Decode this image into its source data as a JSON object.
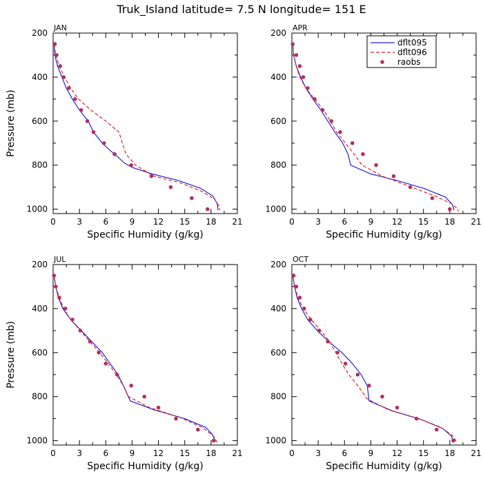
{
  "title": "Truk_Island  latitude= 7.5 N longitude= 151 E",
  "legend": {
    "entries": [
      "dflt095",
      "dflt096",
      "raobs"
    ]
  },
  "colors": {
    "dflt095": "#1f1fdd",
    "dflt096": "#dd2222",
    "raobs": "#b03060"
  },
  "chart_data": [
    {
      "type": "line",
      "panel_label": "JAN",
      "xlabel": "Specific Humidity (g/kg)",
      "ylabel": "Pressure (mb)",
      "xlim": [
        0,
        21
      ],
      "ylim": [
        200,
        1020
      ],
      "y_inverted": true,
      "xticks": [
        "0",
        "3",
        "6",
        "9",
        "12",
        "15",
        "18",
        "21"
      ],
      "yticks": [
        "200",
        "400",
        "600",
        "800",
        "1000"
      ],
      "series": [
        {
          "name": "dflt095",
          "style": "solid",
          "x": [
            0.1,
            0.2,
            0.5,
            1.0,
            1.5,
            2.2,
            3.0,
            4.0,
            4.6,
            5.6,
            6.4,
            7.3,
            8.1,
            9.0,
            11.3,
            14.3,
            16.8,
            18.2,
            18.7,
            18.8
          ],
          "y": [
            250,
            300,
            350,
            400,
            450,
            500,
            550,
            600,
            650,
            700,
            730,
            760,
            790,
            810,
            840,
            870,
            905,
            940,
            975,
            1005
          ]
        },
        {
          "name": "dflt096",
          "style": "dashed",
          "x": [
            0.1,
            0.3,
            0.7,
            1.3,
            2.0,
            2.9,
            4.3,
            6.0,
            7.5,
            7.9,
            8.3,
            9.4,
            11.5,
            14.5,
            17.0,
            18.4,
            18.9,
            19.0
          ],
          "y": [
            250,
            300,
            350,
            400,
            450,
            500,
            550,
            600,
            650,
            700,
            750,
            800,
            850,
            880,
            920,
            955,
            985,
            1005
          ]
        },
        {
          "name": "raobs",
          "style": "markers",
          "x": [
            0.2,
            0.4,
            0.8,
            1.2,
            1.8,
            2.5,
            3.2,
            3.9,
            4.6,
            5.8,
            7.0,
            8.9,
            11.2,
            13.4,
            15.8,
            17.6
          ],
          "y": [
            250,
            300,
            350,
            400,
            450,
            500,
            550,
            600,
            650,
            700,
            750,
            800,
            850,
            900,
            950,
            1000
          ]
        }
      ]
    },
    {
      "type": "line",
      "panel_label": "APR",
      "xlabel": "Specific Humidity (g/kg)",
      "ylabel": "",
      "xlim": [
        0,
        21
      ],
      "ylim": [
        200,
        1020
      ],
      "y_inverted": true,
      "xticks": [
        "0",
        "3",
        "6",
        "9",
        "12",
        "15",
        "18",
        "21"
      ],
      "yticks": [
        "200",
        "400",
        "600",
        "800",
        "1000"
      ],
      "series": [
        {
          "name": "dflt095",
          "style": "solid",
          "x": [
            0.1,
            0.2,
            0.5,
            1.0,
            1.6,
            2.4,
            3.3,
            4.1,
            4.9,
            5.8,
            6.4,
            6.7,
            9.0,
            12.0,
            15.0,
            17.5,
            18.3,
            18.5
          ],
          "y": [
            250,
            300,
            350,
            400,
            450,
            500,
            550,
            600,
            650,
            700,
            750,
            800,
            840,
            870,
            905,
            945,
            980,
            1005
          ]
        },
        {
          "name": "dflt096",
          "style": "dashed",
          "x": [
            0.1,
            0.2,
            0.5,
            0.9,
            1.6,
            2.6,
            3.6,
            4.4,
            5.1,
            6.1,
            7.1,
            8.0,
            10.3,
            13.3,
            16.3,
            18.2,
            18.8,
            19.0
          ],
          "y": [
            250,
            300,
            350,
            400,
            450,
            500,
            550,
            600,
            650,
            700,
            750,
            800,
            850,
            895,
            940,
            975,
            995,
            1010
          ]
        },
        {
          "name": "raobs",
          "style": "markers",
          "x": [
            0.1,
            0.5,
            0.9,
            1.3,
            1.8,
            2.6,
            3.5,
            4.5,
            5.5,
            6.9,
            8.1,
            9.6,
            11.6,
            13.5,
            16.0,
            18.0
          ],
          "y": [
            250,
            300,
            350,
            400,
            450,
            500,
            550,
            600,
            650,
            700,
            750,
            800,
            850,
            900,
            950,
            1000
          ]
        }
      ]
    },
    {
      "type": "line",
      "panel_label": "JUL",
      "xlabel": "Specific Humidity (g/kg)",
      "ylabel": "Pressure (mb)",
      "xlim": [
        0,
        21
      ],
      "ylim": [
        200,
        1020
      ],
      "y_inverted": true,
      "xticks": [
        "0",
        "3",
        "6",
        "9",
        "12",
        "15",
        "18",
        "21"
      ],
      "yticks": [
        "200",
        "400",
        "600",
        "800",
        "1000"
      ],
      "series": [
        {
          "name": "dflt095",
          "style": "solid",
          "x": [
            0.1,
            0.3,
            0.6,
            1.1,
            2.0,
            3.2,
            4.4,
            5.6,
            6.5,
            7.4,
            8.0,
            8.8,
            11.5,
            15.0,
            17.4,
            18.2,
            18.5
          ],
          "y": [
            250,
            300,
            350,
            400,
            450,
            500,
            550,
            600,
            650,
            700,
            750,
            820,
            860,
            900,
            940,
            975,
            1005
          ]
        },
        {
          "name": "dflt096",
          "style": "dashed",
          "x": [
            0.1,
            0.3,
            0.7,
            1.2,
            2.0,
            3.1,
            4.2,
            5.3,
            6.3,
            7.2,
            8.0,
            8.6,
            11.0,
            14.5,
            17.0,
            18.3,
            18.7
          ],
          "y": [
            250,
            300,
            350,
            400,
            450,
            500,
            550,
            600,
            650,
            700,
            750,
            800,
            850,
            895,
            940,
            980,
            1008
          ]
        },
        {
          "name": "raobs",
          "style": "markers",
          "x": [
            0.1,
            0.3,
            0.7,
            1.4,
            2.2,
            3.1,
            4.2,
            5.2,
            6.0,
            7.3,
            8.9,
            10.4,
            12.0,
            14.0,
            16.5,
            18.3
          ],
          "y": [
            250,
            300,
            350,
            400,
            450,
            500,
            550,
            600,
            650,
            700,
            750,
            800,
            850,
            900,
            950,
            1000
          ]
        }
      ]
    },
    {
      "type": "line",
      "panel_label": "OCT",
      "xlabel": "Specific Humidity (g/kg)",
      "ylabel": "",
      "xlim": [
        0,
        21
      ],
      "ylim": [
        200,
        1020
      ],
      "y_inverted": true,
      "xticks": [
        "0",
        "3",
        "6",
        "9",
        "12",
        "15",
        "18",
        "21"
      ],
      "yticks": [
        "200",
        "400",
        "600",
        "800",
        "1000"
      ],
      "series": [
        {
          "name": "dflt095",
          "style": "solid",
          "x": [
            0.1,
            0.3,
            0.6,
            1.1,
            1.8,
            2.9,
            4.2,
            5.7,
            6.9,
            7.9,
            8.6,
            8.8,
            11.5,
            14.8,
            17.2,
            18.2,
            18.4
          ],
          "y": [
            250,
            300,
            350,
            400,
            450,
            500,
            550,
            600,
            650,
            700,
            750,
            820,
            865,
            905,
            945,
            980,
            1005
          ]
        },
        {
          "name": "dflt096",
          "style": "dashed",
          "x": [
            0.1,
            0.3,
            0.7,
            1.3,
            2.2,
            3.3,
            4.3,
            5.0,
            5.7,
            6.5,
            7.5,
            8.6,
            11.0,
            14.5,
            17.0,
            18.4,
            18.8
          ],
          "y": [
            250,
            300,
            350,
            400,
            450,
            500,
            550,
            600,
            650,
            700,
            750,
            810,
            860,
            900,
            940,
            980,
            1008
          ]
        },
        {
          "name": "raobs",
          "style": "markers",
          "x": [
            0.2,
            0.5,
            0.9,
            1.4,
            2.1,
            3.1,
            4.1,
            5.2,
            6.1,
            7.5,
            8.8,
            10.3,
            12.0,
            14.2,
            16.5,
            18.4
          ],
          "y": [
            250,
            300,
            350,
            400,
            450,
            500,
            550,
            600,
            650,
            700,
            750,
            800,
            850,
            900,
            950,
            1000
          ]
        }
      ]
    }
  ]
}
